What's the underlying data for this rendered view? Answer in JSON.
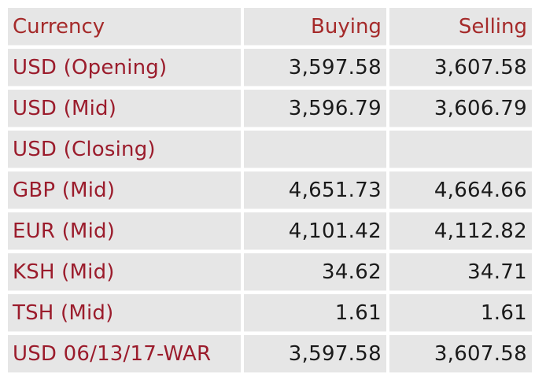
{
  "table": {
    "headers": {
      "currency": "Currency",
      "buying": "Buying",
      "selling": "Selling"
    },
    "rows": [
      {
        "currency": "USD (Opening)",
        "buying": "3,597.58",
        "selling": "3,607.58"
      },
      {
        "currency": "USD (Mid)",
        "buying": "3,596.79",
        "selling": "3,606.79"
      },
      {
        "currency": "USD (Closing)",
        "buying": "",
        "selling": ""
      },
      {
        "currency": "GBP (Mid)",
        "buying": "4,651.73",
        "selling": "4,664.66"
      },
      {
        "currency": "EUR (Mid)",
        "buying": "4,101.42",
        "selling": "4,112.82"
      },
      {
        "currency": "KSH (Mid)",
        "buying": "34.62",
        "selling": "34.71"
      },
      {
        "currency": "TSH (Mid)",
        "buying": "1.61",
        "selling": "1.61"
      },
      {
        "currency": "USD 06/13/17-WAR",
        "buying": "3,597.58",
        "selling": "3,607.58"
      }
    ]
  },
  "colors": {
    "header_text": "#a52a2a",
    "currency_text": "#9b1c2c",
    "value_text": "#1a1a1a",
    "cell_background": "#e6e6e6"
  }
}
